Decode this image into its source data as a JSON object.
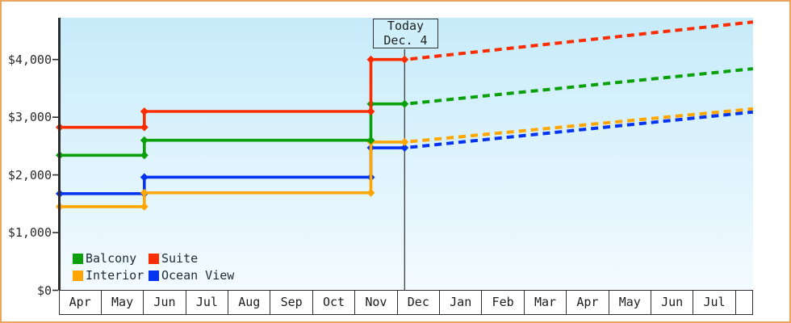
{
  "window": {
    "border_color": "#eaa55e",
    "plot_bg_top": "#c7ebfa",
    "plot_bg_bottom": "#f3fbff",
    "axis_color": "#2d2d2d",
    "today_line_color": "#4a4a4a"
  },
  "chart_data": {
    "type": "line",
    "title": "",
    "description": "Cruise cabin price history (solid, with step changes) and forecast (dashed) by cabin category",
    "today_label": {
      "line1": "Today",
      "line2": "Dec. 4"
    },
    "today_x_months": 8.155,
    "x_axis": {
      "months": [
        "Apr",
        "May",
        "Jun",
        "Jul",
        "Aug",
        "Sep",
        "Oct",
        "Nov",
        "Dec",
        "Jan",
        "Feb",
        "Mar",
        "Apr",
        "May",
        "Jun",
        "Jul"
      ],
      "x_max_months": 16.39,
      "grid": false
    },
    "y_axis": {
      "ticks": [
        {
          "label": "$0",
          "value": 0
        },
        {
          "label": "$1,000",
          "value": 1000
        },
        {
          "label": "$2,000",
          "value": 2000
        },
        {
          "label": "$3,000",
          "value": 3000
        },
        {
          "label": "$4,000",
          "value": 4000
        }
      ],
      "display_max": 4723
    },
    "legend": [
      {
        "label": "Balcony",
        "color": "#09a009"
      },
      {
        "label": "Suite",
        "color": "#fb2d00"
      },
      {
        "label": "Interior",
        "color": "#ffa600"
      },
      {
        "label": "Ocean View",
        "color": "#0434f0"
      }
    ],
    "legend_position": "bottom-left-inside",
    "series": [
      {
        "name": "Ocean View",
        "color": "#0434f0",
        "solid_points": [
          [
            0,
            1675
          ],
          [
            2,
            1675
          ],
          [
            2,
            1960
          ],
          [
            7.357,
            1960
          ],
          [
            7.357,
            2470
          ],
          [
            8.155,
            2470
          ]
        ],
        "forecast_end": [
          16.39,
          3090
        ]
      },
      {
        "name": "Interior",
        "color": "#ffa600",
        "solid_points": [
          [
            0,
            1450
          ],
          [
            2,
            1450
          ],
          [
            2,
            1690
          ],
          [
            7.357,
            1690
          ],
          [
            7.357,
            2570
          ],
          [
            8.155,
            2570
          ]
        ],
        "forecast_end": [
          16.39,
          3145
        ]
      },
      {
        "name": "Balcony",
        "color": "#09a009",
        "solid_points": [
          [
            0,
            2340
          ],
          [
            2,
            2340
          ],
          [
            2,
            2600
          ],
          [
            7.357,
            2600
          ],
          [
            7.357,
            3230
          ],
          [
            8.155,
            3230
          ]
        ],
        "forecast_end": [
          16.39,
          3840
        ]
      },
      {
        "name": "Suite",
        "color": "#fb2d00",
        "solid_points": [
          [
            0,
            2825
          ],
          [
            2,
            2825
          ],
          [
            2,
            3100
          ],
          [
            7.357,
            3100
          ],
          [
            7.357,
            4000
          ],
          [
            8.155,
            4000
          ]
        ],
        "forecast_end": [
          16.39,
          4650
        ]
      }
    ]
  }
}
